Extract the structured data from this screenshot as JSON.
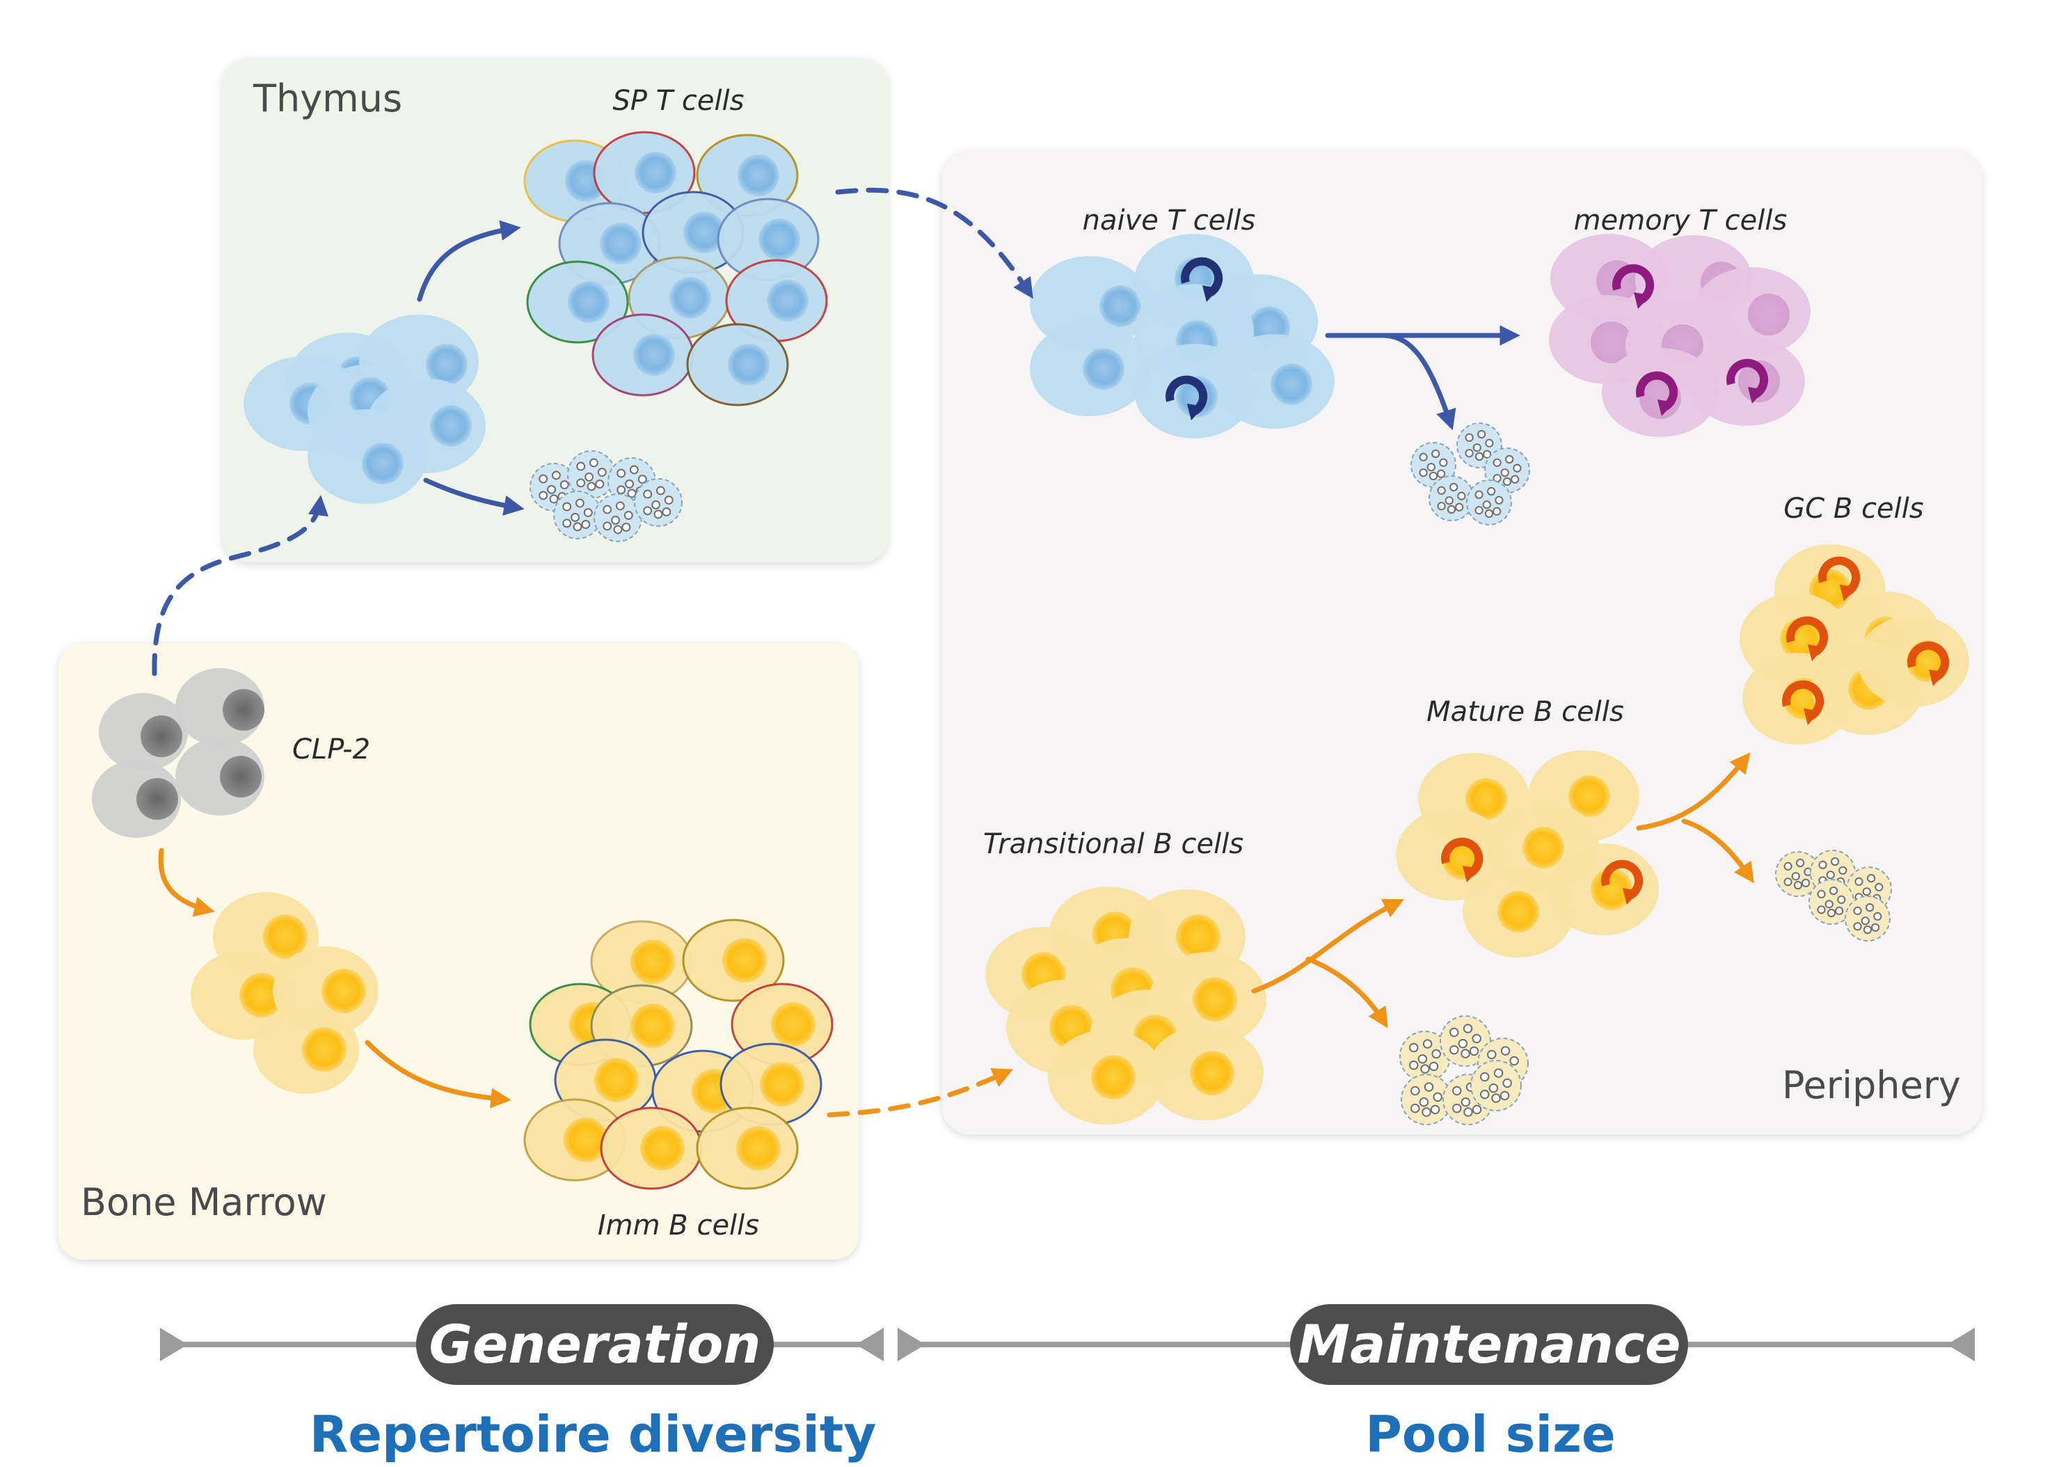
{
  "regions": {
    "thymus": "Thymus",
    "periphery": "Periphery",
    "bone_marrow": "Bone Marrow"
  },
  "cell_labels": {
    "sp_t_cells": "SP T cells",
    "naive_t_cells": "naive T cells",
    "memory_t_cells": "memory T cells",
    "gc_b_cells": "GC B cells",
    "mature_b_cells": "Mature B cells",
    "transitional_b_cells": "Transitional B cells",
    "clp2": "CLP-2",
    "imm_b_cells": "Imm B cells"
  },
  "phases": {
    "generation": "Generation",
    "maintenance": "Maintenance"
  },
  "subtitles": {
    "repertoire_diversity": "Repertoire diversity",
    "pool_size": "Pool size"
  },
  "colors": {
    "t_cell_arrow": "#3d58a6",
    "b_cell_arrow": "#ef9218",
    "thymus_bg": "#eef4ea",
    "periphery_bg": "#f7f4f6",
    "bone_marrow_bg": "#fdf9e8",
    "t_cell_fill": "#bcdcef",
    "t_cell_nucleus": "#7fb6e2",
    "b_cell_fill": "#f9e3a2",
    "b_cell_nucleus": "#fbc01d",
    "memory_cell_fill": "#e7c6e3",
    "progenitor_fill": "#d0d0d0",
    "phase_pill": "#4d4d4d",
    "subtitle_text": "#1d6fb8"
  },
  "icons": {
    "proliferation": "circular-arrow-icon",
    "apoptosis": "apoptotic-cell-icon"
  }
}
